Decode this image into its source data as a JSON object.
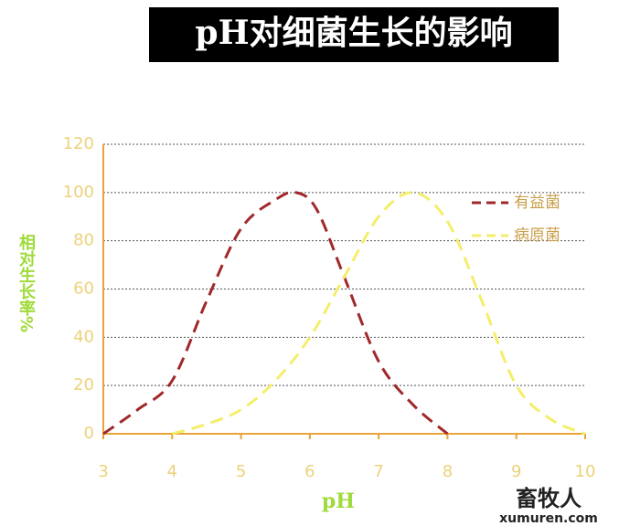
{
  "chart_data": {
    "type": "line",
    "title": "pH对细菌生长的影响",
    "x_label": "pH",
    "y_label": "相对生长率%",
    "xlim": [
      3,
      10
    ],
    "xticks": [
      3,
      4,
      5,
      6,
      7,
      8,
      9,
      10
    ],
    "ylim": [
      0,
      120
    ],
    "yticks": [
      0,
      20,
      40,
      60,
      80,
      100,
      120
    ],
    "grid": true,
    "legend": "upper right",
    "series": [
      {
        "name": "有益菌",
        "color": "#a0282a",
        "x": [
          3,
          3.5,
          4,
          4.5,
          5,
          5.5,
          5.8,
          6.1,
          6.5,
          7,
          7.5,
          8
        ],
        "values": [
          0,
          10,
          22,
          55,
          85,
          97,
          100,
          93,
          65,
          30,
          12,
          0
        ]
      },
      {
        "name": "病原菌",
        "color": "#f4ee6a",
        "x": [
          4,
          4.5,
          5,
          5.5,
          6,
          6.5,
          7,
          7.5,
          8,
          8.5,
          9,
          9.5,
          10
        ],
        "values": [
          0,
          4,
          10,
          22,
          40,
          65,
          90,
          100,
          88,
          55,
          20,
          6,
          0
        ]
      }
    ],
    "watermark": [
      "畜牧人",
      "xumuren.com"
    ]
  }
}
